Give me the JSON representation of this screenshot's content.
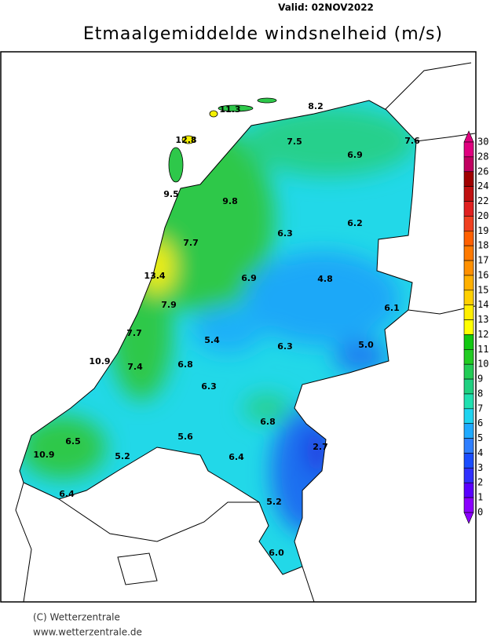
{
  "header": {
    "valid": "Valid:  02NOV2022",
    "title": "Etmaalgemiddelde windsnelheid (m/s)"
  },
  "stations": [
    "11.3",
    "8.2",
    "12.8",
    "7.5",
    "7.6",
    "6.9",
    "9.5",
    "9.8",
    "6.3",
    "6.2",
    "7.7",
    "13.4",
    "6.9",
    "4.8",
    "6.1",
    "7.9",
    "7.7",
    "5.4",
    "6.3",
    "5.0",
    "10.9",
    "7.4",
    "6.8",
    "6.3",
    "6.8",
    "6.5",
    "5.6",
    "2.7",
    "10.9",
    "5.2",
    "6.4",
    "6.4",
    "5.2",
    "6.0"
  ],
  "colorbar": [
    "30",
    "28",
    "26",
    "24",
    "22",
    "20",
    "19",
    "18",
    "17",
    "16",
    "15",
    "14",
    "13",
    "12",
    "11",
    "10",
    "9",
    "8",
    "7",
    "6",
    "5",
    "4",
    "3",
    "2",
    "1",
    "0"
  ],
  "footer": {
    "copyright": "(C) Wetterzentrale",
    "url": "www.wetterzentrale.de"
  }
}
